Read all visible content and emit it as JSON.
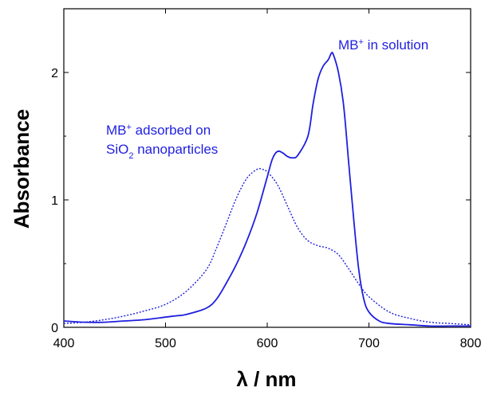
{
  "chart_data": {
    "type": "line",
    "title": "",
    "xlabel": "λ / nm",
    "ylabel": "Absorbance",
    "xlim": [
      400,
      800
    ],
    "ylim": [
      0,
      2.5
    ],
    "x_ticks": [
      400,
      500,
      600,
      700,
      800
    ],
    "y_ticks": [
      0,
      1,
      2
    ],
    "grid": false,
    "legend": "none",
    "series": [
      {
        "line_style": "solid",
        "color": "#1f1fe0",
        "x": [
          400,
          420,
          440,
          460,
          480,
          500,
          510,
          520,
          540,
          550,
          560,
          570,
          580,
          590,
          600,
          605,
          610,
          615,
          620,
          625,
          630,
          640,
          645,
          650,
          655,
          660,
          663,
          665,
          670,
          675,
          680,
          685,
          690,
          695,
          700,
          710,
          720,
          740,
          760,
          780,
          800
        ],
        "y": [
          0.05,
          0.04,
          0.04,
          0.05,
          0.06,
          0.08,
          0.09,
          0.1,
          0.15,
          0.22,
          0.35,
          0.5,
          0.68,
          0.9,
          1.18,
          1.32,
          1.38,
          1.37,
          1.34,
          1.33,
          1.35,
          1.5,
          1.75,
          1.95,
          2.05,
          2.1,
          2.15,
          2.14,
          2.0,
          1.75,
          1.3,
          0.85,
          0.45,
          0.22,
          0.12,
          0.05,
          0.03,
          0.02,
          0.01,
          0.01,
          0.01
        ]
      },
      {
        "line_style": "dotted",
        "color": "#1f1fe0",
        "x": [
          400,
          420,
          440,
          460,
          480,
          500,
          520,
          540,
          550,
          560,
          570,
          580,
          590,
          595,
          600,
          610,
          620,
          630,
          640,
          650,
          660,
          670,
          680,
          690,
          700,
          720,
          740,
          760,
          780,
          800
        ],
        "y": [
          0.03,
          0.04,
          0.06,
          0.09,
          0.13,
          0.18,
          0.28,
          0.45,
          0.62,
          0.82,
          1.02,
          1.17,
          1.24,
          1.24,
          1.22,
          1.12,
          0.95,
          0.78,
          0.68,
          0.64,
          0.62,
          0.57,
          0.46,
          0.34,
          0.24,
          0.12,
          0.07,
          0.04,
          0.03,
          0.02
        ]
      }
    ],
    "annotations": [
      {
        "lines": [
          "MB",
          "+",
          " in solution"
        ]
      },
      {
        "lines": [
          "MB",
          "+",
          " adsorbed on"
        ]
      },
      {
        "lines": [
          "SiO",
          "2",
          " nanoparticles"
        ]
      }
    ]
  }
}
